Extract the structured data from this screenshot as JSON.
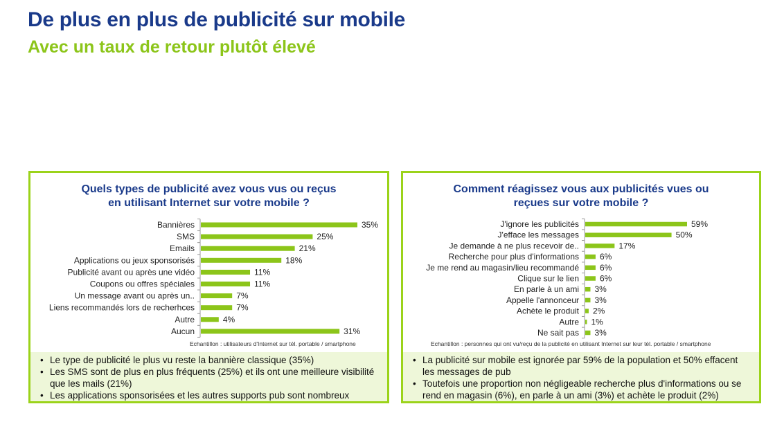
{
  "title": "De plus en plus de publicité sur mobile",
  "subtitle": "Avec un taux de retour plutôt élevé",
  "colors": {
    "title": "#1a3a8a",
    "accent": "#8cc51a",
    "bar": "#8cc51a",
    "panel_border": "#9bd31a",
    "notes_bg": "#eef7d9"
  },
  "left_panel": {
    "title_line1": "Quels types de publicité avez vous vus ou reçus",
    "title_line2": "en utilisant Internet sur votre mobile ?",
    "sample": "Echantillon : utilisateurs d'Internet sur tél. portable / smartphone",
    "notes": [
      "Le type de publicité le plus vu reste la bannière classique (35%)",
      "Les SMS sont de plus en plus fréquents (25%) et ils ont une meilleure visibilité que les mails (21%)",
      "Les applications sponsorisées et les autres supports pub sont nombreux"
    ]
  },
  "right_panel": {
    "title_line1": "Comment réagissez vous aux publicités vues ou",
    "title_line2": "reçues sur votre mobile ?",
    "sample": "Echantillon : personnes qui ont vu/reçu de la publicité en utilisant Internet sur leur tél. portable / smartphone",
    "notes": [
      "La publicité sur mobile est ignorée par 59% de la population et 50% effacent les messages de pub",
      "Toutefois une proportion non négligeable recherche plus d'informations ou se rend en magasin (6%), en parle à un ami  (3%) et achète le produit (2%)"
    ]
  },
  "chart_data": [
    {
      "type": "bar",
      "orientation": "horizontal",
      "title": "Quels types de publicité avez vous vus ou reçus en utilisant Internet sur votre mobile ?",
      "categories": [
        "Bannières",
        "SMS",
        "Emails",
        "Applications ou jeux sponsorisés",
        "Publicité avant ou après une vidéo",
        "Coupons ou offres spéciales",
        "Un message avant ou après un..",
        "Liens recommandés lors de recherhces",
        "Autre",
        "Aucun"
      ],
      "values": [
        35,
        25,
        21,
        18,
        11,
        11,
        7,
        7,
        4,
        31
      ],
      "unit": "%",
      "xlim": [
        0,
        35
      ],
      "grid": false
    },
    {
      "type": "bar",
      "orientation": "horizontal",
      "title": "Comment réagissez vous aux publicités vues ou reçues sur votre mobile ?",
      "categories": [
        "J'ignore les publicités",
        "J'efface les messages",
        "Je demande à ne plus recevoir de..",
        "Recherche pour plus d'informations",
        "Je me rend au magasin/lieu recommandé",
        "Clique sur le lien",
        "En parle à un ami",
        "Appelle l'annonceur",
        "Achète le produit",
        "Autre",
        "Ne sait pas"
      ],
      "values": [
        59,
        50,
        17,
        6,
        6,
        6,
        3,
        3,
        2,
        1,
        3
      ],
      "unit": "%",
      "xlim": [
        0,
        59
      ],
      "grid": false
    }
  ]
}
